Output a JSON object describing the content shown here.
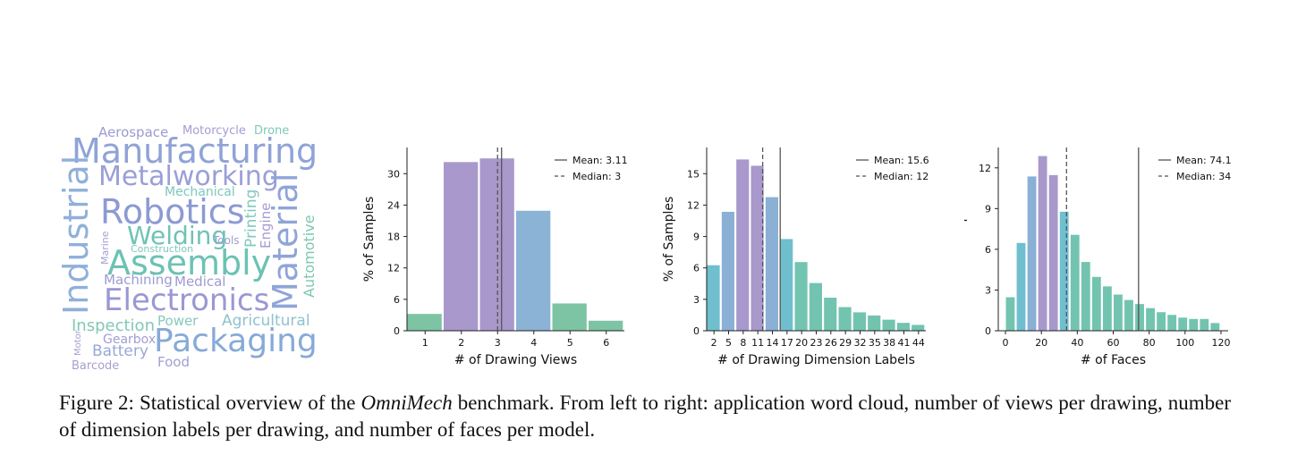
{
  "wordcloud": {
    "words": [
      {
        "text": "Aerospace",
        "color": "#9c9bd1"
      },
      {
        "text": "Motorcycle",
        "color": "#a79bcf"
      },
      {
        "text": "Drone",
        "color": "#7fc8b8"
      },
      {
        "text": "Manufacturing",
        "color": "#8fa3d6"
      },
      {
        "text": "Metalworking",
        "color": "#9a9fd6"
      },
      {
        "text": "Mechanical",
        "color": "#7cc7bd"
      },
      {
        "text": "Industrial",
        "color": "#8fb0da"
      },
      {
        "text": "Robotics",
        "color": "#8c9ad4"
      },
      {
        "text": "Printing",
        "color": "#82c9bf"
      },
      {
        "text": "Engine",
        "color": "#a99bd0"
      },
      {
        "text": "Material",
        "color": "#8fa5d8"
      },
      {
        "text": "Automotive",
        "color": "#7dc7b1"
      },
      {
        "text": "Welding",
        "color": "#6fc3b6"
      },
      {
        "text": "Tools",
        "color": "#9b9fd1"
      },
      {
        "text": "Marine",
        "color": "#a2a0d2"
      },
      {
        "text": "Construction",
        "color": "#7fc6bf"
      },
      {
        "text": "Assembly",
        "color": "#6cc2b3"
      },
      {
        "text": "Machining",
        "color": "#9d9bd2"
      },
      {
        "text": "Medical",
        "color": "#a09ad0"
      },
      {
        "text": "Electronics",
        "color": "#9a98d3"
      },
      {
        "text": "Inspection",
        "color": "#82c8b5"
      },
      {
        "text": "Power",
        "color": "#86c9bd"
      },
      {
        "text": "Agricultural",
        "color": "#8fc2cf"
      },
      {
        "text": "Motor",
        "color": "#a6a2d3"
      },
      {
        "text": "Gearbox",
        "color": "#a19ed3"
      },
      {
        "text": "Packaging",
        "color": "#86aad8"
      },
      {
        "text": "Battery",
        "color": "#98a9d8"
      },
      {
        "text": "Barcode",
        "color": "#a8a0d2"
      },
      {
        "text": "Food",
        "color": "#9fa0d4"
      }
    ]
  },
  "chart_data": [
    {
      "type": "bar",
      "xlabel": "# of Drawing Views",
      "ylabel": "% of Samples",
      "categories": [
        "1",
        "2",
        "3",
        "4",
        "5",
        "6"
      ],
      "values": [
        3.3,
        32.3,
        33.0,
        23.0,
        5.3,
        2.0
      ],
      "colors": [
        "#7cc4a4",
        "#a898cc",
        "#a898cc",
        "#8ab3d6",
        "#7cc4a4",
        "#7cc4a4"
      ],
      "yticks": [
        0,
        6,
        12,
        18,
        24,
        30
      ],
      "ylim": [
        0,
        35
      ],
      "mean": 3.11,
      "median": 3,
      "legend": {
        "mean_label": "Mean: 3.11",
        "median_label": "Median: 3",
        "position": "top-right"
      }
    },
    {
      "type": "bar",
      "xlabel": "# of Drawing Dimension Labels",
      "ylabel": "% of Samples",
      "categories": [
        "2",
        "5",
        "8",
        "11",
        "14",
        "17",
        "20",
        "23",
        "26",
        "29",
        "32",
        "35",
        "38",
        "41",
        "44"
      ],
      "values": [
        6.3,
        11.4,
        16.4,
        15.8,
        12.8,
        8.8,
        6.6,
        4.6,
        3.2,
        2.3,
        1.8,
        1.5,
        1.1,
        0.8,
        0.6
      ],
      "colors": [
        "#6fbfcf",
        "#8ab0d6",
        "#a898cc",
        "#a898cc",
        "#8ab0d6",
        "#6fbfcf",
        "#72c4b0",
        "#72c4b0",
        "#72c4b0",
        "#72c4b0",
        "#72c4b0",
        "#72c4b0",
        "#72c4b0",
        "#72c4b0",
        "#72c4b0"
      ],
      "yticks": [
        0,
        3,
        6,
        9,
        12,
        15
      ],
      "ylim": [
        0,
        17.5
      ],
      "mean": 15.6,
      "median": 12,
      "legend": {
        "mean_label": "Mean: 15.6",
        "median_label": "Median: 12",
        "position": "top-right"
      }
    },
    {
      "type": "bar",
      "xlabel": "# of Faces",
      "ylabel": "% of Samples",
      "x_bin_start": [
        0,
        6,
        12,
        18,
        24,
        30,
        36,
        42,
        48,
        54,
        60,
        66,
        72,
        78,
        84,
        90,
        96,
        102,
        108,
        114
      ],
      "bin_width": 6,
      "values": [
        2.5,
        6.5,
        11.4,
        12.9,
        11.5,
        8.8,
        7.1,
        5.1,
        4.0,
        3.3,
        2.7,
        2.3,
        2.0,
        1.7,
        1.4,
        1.2,
        1.0,
        0.9,
        0.9,
        0.6
      ],
      "colors": [
        "#72c4b0",
        "#6fbfcf",
        "#8ab0d6",
        "#a898cc",
        "#a898cc",
        "#6fbfcf",
        "#72c4b0",
        "#72c4b0",
        "#72c4b0",
        "#72c4b0",
        "#72c4b0",
        "#72c4b0",
        "#72c4b0",
        "#72c4b0",
        "#72c4b0",
        "#72c4b0",
        "#72c4b0",
        "#72c4b0",
        "#72c4b0",
        "#72c4b0"
      ],
      "xticks": [
        0,
        20,
        40,
        60,
        80,
        100,
        120
      ],
      "xlim": [
        -4,
        124
      ],
      "yticks": [
        0,
        3,
        6,
        9,
        12
      ],
      "ylim": [
        0,
        13.5
      ],
      "mean": 74.1,
      "median": 34,
      "legend": {
        "mean_label": "Mean: 74.1",
        "median_label": "Median: 34",
        "position": "top-right"
      }
    }
  ],
  "caption": {
    "prefix": "Figure 2: Statistical overview of the ",
    "emphasis": "OmniMech",
    "suffix": " benchmark. From left to right: application word cloud, number of views per drawing, number of dimension labels per drawing, and number of faces per model."
  }
}
